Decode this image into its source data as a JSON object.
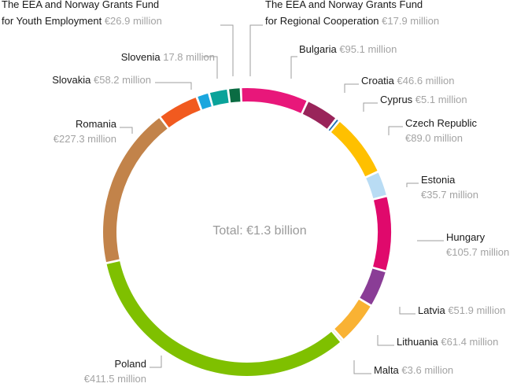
{
  "chart_data": {
    "type": "pie",
    "total_label": "Total: €1.3 billion",
    "slices": [
      {
        "name": "Bulgaria",
        "value": 95.1,
        "value_label": "€95.1 million",
        "color": "#e8177a"
      },
      {
        "name": "Croatia",
        "value": 46.6,
        "value_label": "€46.6 million",
        "color": "#99245a"
      },
      {
        "name": "Cyprus",
        "value": 5.1,
        "value_label": "€5.1 million",
        "color": "#1f6fb4"
      },
      {
        "name": "Czech Republic",
        "value": 89.0,
        "value_label": "€89.0 million",
        "color": "#ffc000"
      },
      {
        "name": "Estonia",
        "value": 35.7,
        "value_label": "€35.7 million",
        "color": "#b9dcf4"
      },
      {
        "name": "Hungary",
        "value": 105.7,
        "value_label": "€105.7 million",
        "color": "#e0096c"
      },
      {
        "name": "Latvia",
        "value": 51.9,
        "value_label": "€51.9 million",
        "color": "#8a3d96"
      },
      {
        "name": "Lithuania",
        "value": 61.4,
        "value_label": "€61.4 million",
        "color": "#f9b233"
      },
      {
        "name": "Malta",
        "value": 3.6,
        "value_label": "€3.6 million",
        "color": "#d9d4a8"
      },
      {
        "name": "Poland",
        "value": 411.5,
        "value_label": "€411.5 million",
        "color": "#7fc000"
      },
      {
        "name": "Romania",
        "value": 227.3,
        "value_label": "€227.3 million",
        "color": "#c2834a"
      },
      {
        "name": "Slovakia",
        "value": 58.2,
        "value_label": "€58.2 million",
        "color": "#f15a1f"
      },
      {
        "name": "Slovenia",
        "value": 17.8,
        "value_label": "17.8 million",
        "color": "#1aa6de"
      },
      {
        "name": "The EEA and Norway Grants Fund for Youth Employment",
        "name_lines": [
          "The EEA and Norway Grants Fund",
          "for Youth Employment"
        ],
        "value": 26.9,
        "value_label": "€26.9 million",
        "color": "#0aa39a"
      },
      {
        "name": "The EEA and Norway Grants Fund for Regional Cooperation",
        "name_lines": [
          "The EEA and Norway Grants Fund",
          "for Regional Cooperation"
        ],
        "value": 17.9,
        "value_label": "€17.9 million",
        "color": "#0b6c43"
      }
    ]
  }
}
